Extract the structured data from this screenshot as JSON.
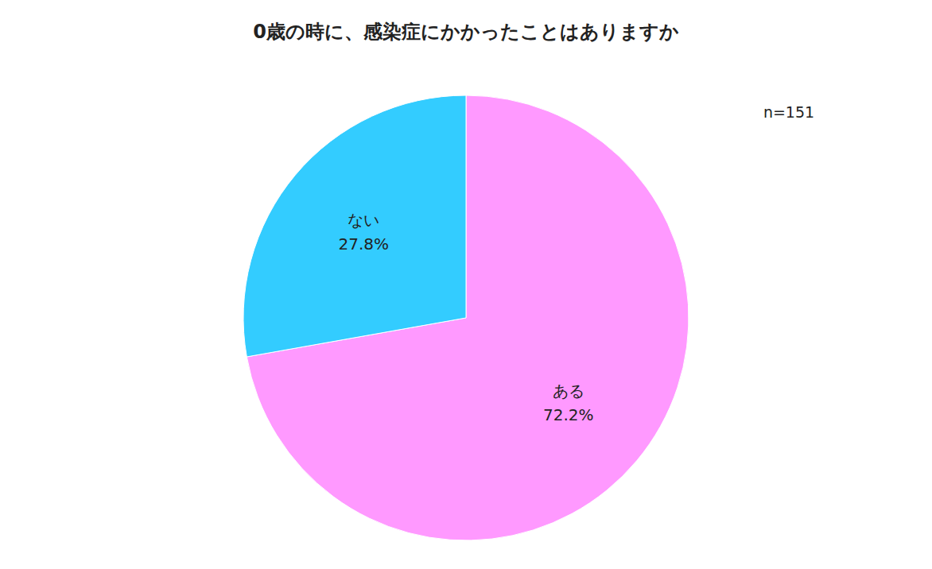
{
  "chart_data": {
    "type": "pie",
    "title": "0歳の時に、感染症にかかったことはありますか",
    "categories": [
      "ある",
      "ない"
    ],
    "values": [
      72.2,
      27.8
    ],
    "value_labels": [
      "72.2%",
      "27.8%"
    ],
    "data_labels": true,
    "colors": [
      "#FF99FF",
      "#33CCFF"
    ],
    "annotations": [
      "n=151"
    ]
  }
}
